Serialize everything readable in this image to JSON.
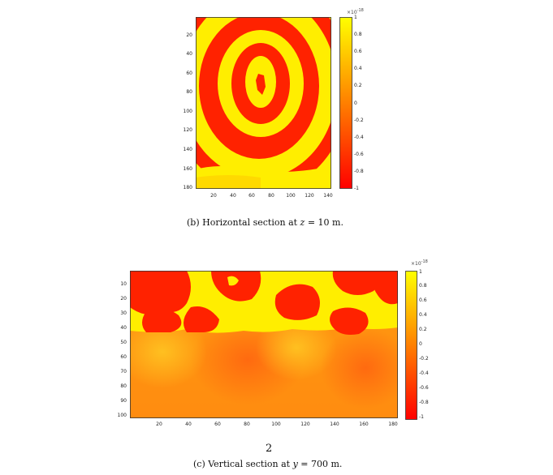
{
  "figure_b": {
    "caption": "(b) Horizontal section at z = 10 m.",
    "caption_prefix": "(b) Horizontal section at",
    "caption_var": "z",
    "caption_suffix": "= 10 m.",
    "y_ticks": [
      "20",
      "40",
      "60",
      "80",
      "100",
      "120",
      "140",
      "160",
      "180"
    ],
    "x_ticks": [
      "20",
      "40",
      "60",
      "80",
      "100",
      "120",
      "140"
    ],
    "colorbar": {
      "exponent": "×10",
      "exponent_power": "-18",
      "ticks": [
        "1",
        "0.8",
        "0.6",
        "0.4",
        "0.2",
        "0",
        "-0.2",
        "-0.4",
        "-0.6",
        "-0.8",
        "-1"
      ],
      "colors": {
        "high": "#ffff00",
        "low": "#ff0000"
      }
    }
  },
  "figure_c": {
    "caption": "(c) Vertical section at y = 700 m.",
    "caption_prefix": "(c) Vertical section at",
    "caption_var": "y",
    "caption_suffix": "= 700 m.",
    "y_ticks": [
      "10",
      "20",
      "30",
      "40",
      "50",
      "60",
      "70",
      "80",
      "90",
      "100"
    ],
    "x_ticks": [
      "20",
      "40",
      "60",
      "80",
      "100",
      "120",
      "140",
      "160",
      "180"
    ],
    "colorbar": {
      "exponent": "×10",
      "exponent_power": "-18",
      "ticks": [
        "1",
        "0.8",
        "0.6",
        "0.4",
        "0.2",
        "0",
        "-0.2",
        "-0.4",
        "-0.6",
        "-0.8",
        "-1"
      ],
      "colors": {
        "high": "#ffff00",
        "low": "#ff0000"
      }
    }
  },
  "page_number": "2"
}
